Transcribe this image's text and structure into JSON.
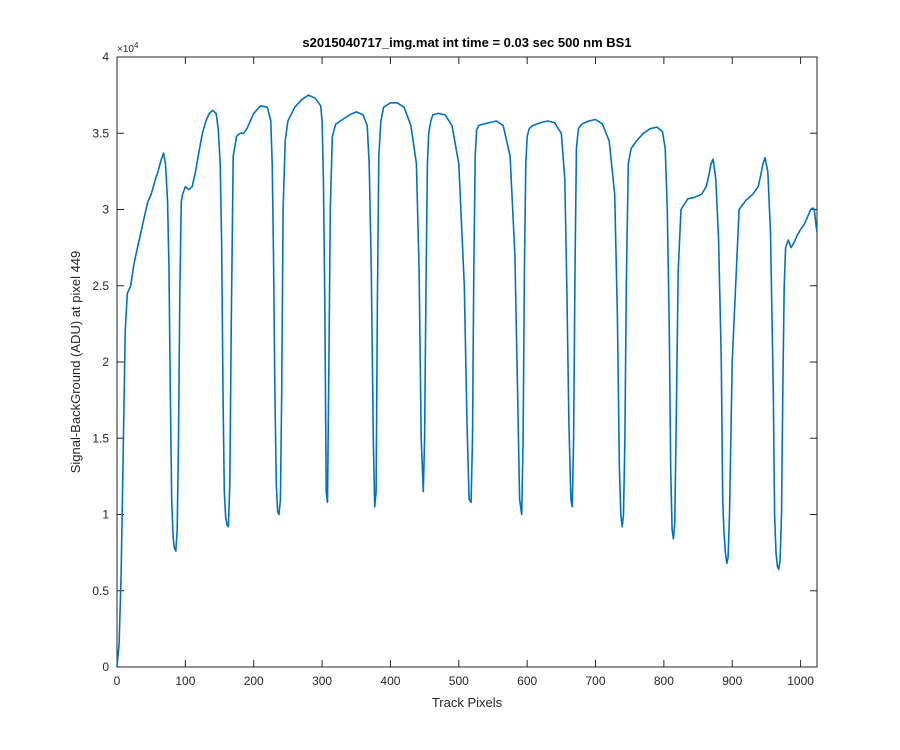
{
  "chart_data": {
    "type": "line",
    "title": "s2015040717_img.mat int time = 0.03 sec  500 nm BS1",
    "xlabel": "Track Pixels",
    "ylabel": "Signal-BackGround (ADU) at pixel 449",
    "y_exponent_label": "×10",
    "y_exponent_power": "4",
    "xlim": [
      0,
      1024
    ],
    "ylim": [
      0,
      40000
    ],
    "x_ticks": [
      0,
      100,
      200,
      300,
      400,
      500,
      600,
      700,
      800,
      900,
      1000
    ],
    "x_tick_labels": [
      "0",
      "100",
      "200",
      "300",
      "400",
      "500",
      "600",
      "700",
      "800",
      "900",
      "1000"
    ],
    "y_ticks": [
      0,
      5000,
      10000,
      15000,
      20000,
      25000,
      30000,
      35000,
      40000
    ],
    "y_tick_labels": [
      "0",
      "0.5",
      "1",
      "1.5",
      "2",
      "2.5",
      "3",
      "3.5",
      "4"
    ],
    "grid": false,
    "line_color": "#0072BD",
    "series": [
      {
        "x": [
          0,
          3,
          6,
          9,
          12,
          15,
          20,
          25,
          30,
          35,
          40,
          45,
          50,
          55,
          60,
          65,
          68,
          71,
          74,
          76,
          78,
          80,
          82,
          84,
          86,
          88,
          90,
          92,
          94,
          96,
          100,
          105,
          110,
          115,
          120,
          125,
          130,
          135,
          140,
          145,
          148,
          151,
          153,
          155,
          157,
          159,
          161,
          163,
          165,
          167,
          170,
          175,
          180,
          185,
          190,
          195,
          200,
          210,
          220,
          225,
          227,
          229,
          231,
          233,
          235,
          237,
          239,
          241,
          243,
          246,
          250,
          260,
          270,
          280,
          290,
          298,
          300,
          302,
          304,
          306,
          308,
          310,
          312,
          315,
          320,
          330,
          340,
          350,
          360,
          366,
          369,
          372,
          375,
          377,
          379,
          381,
          383,
          386,
          390,
          400,
          410,
          420,
          430,
          438,
          442,
          445,
          448,
          450,
          452,
          454,
          456,
          459,
          462,
          470,
          480,
          490,
          500,
          508,
          512,
          515,
          518,
          520,
          522,
          524,
          526,
          529,
          535,
          545,
          555,
          565,
          575,
          582,
          586,
          589,
          592,
          594,
          596,
          598,
          600,
          603,
          608,
          620,
          630,
          640,
          650,
          655,
          658,
          661,
          664,
          666,
          668,
          670,
          672,
          675,
          680,
          690,
          700,
          710,
          720,
          728,
          732,
          735,
          737,
          739,
          741,
          743,
          745,
          748,
          752,
          760,
          770,
          780,
          790,
          798,
          802,
          805,
          808,
          810,
          812,
          814,
          816,
          818,
          821,
          825,
          835,
          845,
          855,
          862,
          866,
          869,
          872,
          876,
          880,
          884,
          886,
          888,
          890,
          892,
          894,
          896,
          900,
          910,
          920,
          930,
          938,
          942,
          945,
          948,
          952,
          956,
          960,
          962,
          964,
          966,
          968,
          970,
          972,
          974,
          976,
          978,
          982,
          986,
          990,
          995,
          1000,
          1005,
          1010,
          1015,
          1018,
          1020,
          1022,
          1024
        ],
        "y": [
          0,
          1500,
          6000,
          14000,
          22000,
          24500,
          25000,
          26500,
          27500,
          28500,
          29500,
          30500,
          31000,
          31800,
          32500,
          33300,
          33700,
          33000,
          30500,
          26000,
          18000,
          11000,
          8500,
          7800,
          7600,
          9000,
          15000,
          25000,
          30500,
          31000,
          31500,
          31300,
          31500,
          32500,
          33800,
          35000,
          35800,
          36300,
          36500,
          36300,
          35300,
          33000,
          28000,
          18000,
          11500,
          9800,
          9300,
          9200,
          12000,
          22000,
          33500,
          34800,
          35000,
          35000,
          35300,
          35800,
          36300,
          36800,
          36700,
          35800,
          33000,
          27000,
          18000,
          12000,
          10200,
          10000,
          11000,
          18000,
          30000,
          34500,
          35800,
          36700,
          37200,
          37500,
          37300,
          36800,
          35800,
          32000,
          24000,
          11500,
          10800,
          20000,
          30000,
          34800,
          35600,
          35900,
          36200,
          36400,
          36200,
          35500,
          33000,
          26000,
          15000,
          10500,
          11500,
          24000,
          33500,
          35800,
          36700,
          37000,
          37000,
          36700,
          35500,
          33000,
          26000,
          15000,
          11500,
          15000,
          25000,
          33000,
          35000,
          35800,
          36200,
          36300,
          36200,
          35500,
          33000,
          25000,
          16000,
          11000,
          10800,
          15000,
          26000,
          33500,
          35200,
          35500,
          35600,
          35700,
          35800,
          35500,
          33500,
          27000,
          18000,
          11000,
          10000,
          15000,
          26000,
          33000,
          34800,
          35300,
          35500,
          35700,
          35800,
          35700,
          35000,
          32000,
          25000,
          16000,
          11000,
          10500,
          15000,
          26000,
          34000,
          35300,
          35600,
          35800,
          35900,
          35600,
          34500,
          31000,
          23000,
          13000,
          10000,
          9200,
          10000,
          15000,
          25000,
          33000,
          34000,
          34500,
          35000,
          35300,
          35400,
          35100,
          34000,
          30000,
          22000,
          13000,
          9000,
          8400,
          9500,
          16000,
          26000,
          30000,
          30700,
          30800,
          31000,
          31500,
          32300,
          33000,
          33300,
          32000,
          28000,
          20000,
          11000,
          8800,
          7500,
          6800,
          7200,
          10000,
          20000,
          30000,
          30600,
          31000,
          31500,
          32300,
          33000,
          33400,
          32500,
          28500,
          18000,
          10000,
          7500,
          6600,
          6400,
          7000,
          10000,
          18000,
          25000,
          27500,
          28000,
          27500,
          27800,
          28300,
          28700,
          29000,
          29500,
          30000,
          30100,
          30000,
          29200,
          28500
        ]
      }
    ]
  }
}
